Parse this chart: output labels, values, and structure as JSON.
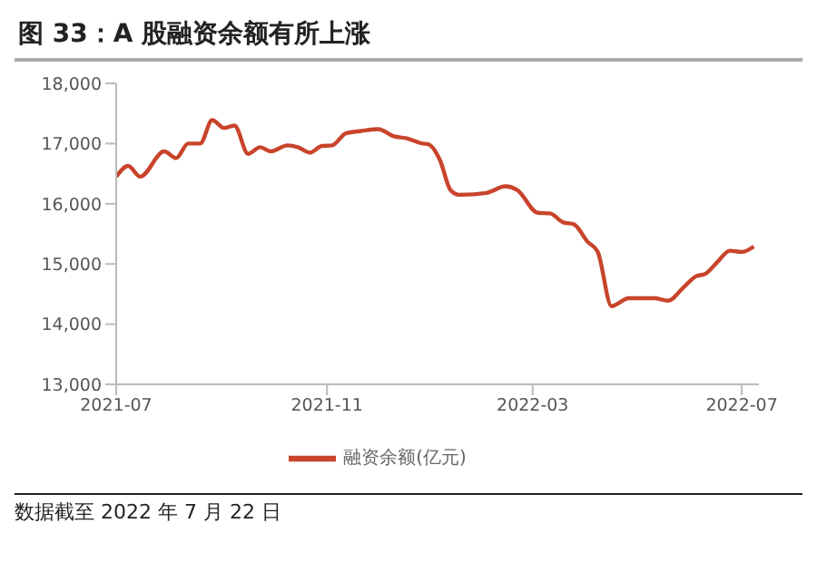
{
  "chart_data": {
    "type": "line",
    "title": "图 33：A 股融资余额有所上涨",
    "x": [
      "2021-07-01",
      "2021-07-08",
      "2021-07-15",
      "2021-07-29",
      "2021-08-05",
      "2021-08-12",
      "2021-08-19",
      "2021-08-26",
      "2021-09-02",
      "2021-09-08",
      "2021-09-16",
      "2021-09-23",
      "2021-09-29",
      "2021-10-09",
      "2021-10-15",
      "2021-10-22",
      "2021-10-29",
      "2021-11-04",
      "2021-11-12",
      "2021-11-21",
      "2021-12-01",
      "2021-12-10",
      "2021-12-17",
      "2021-12-27",
      "2021-12-30",
      "2022-01-06",
      "2022-01-12",
      "2022-01-17",
      "2022-02-02",
      "2022-02-13",
      "2022-02-20",
      "2022-03-04",
      "2022-03-11",
      "2022-03-19",
      "2022-03-25",
      "2022-04-02",
      "2022-04-08",
      "2022-04-16",
      "2022-04-26",
      "2022-05-11",
      "2022-05-19",
      "2022-05-28",
      "2022-06-04",
      "2022-06-10",
      "2022-06-17",
      "2022-06-24",
      "2022-07-01",
      "2022-07-08"
    ],
    "series": [
      {
        "name": "融资余额(亿元)",
        "color": "#c8442a",
        "values": [
          16450,
          16630,
          16450,
          16870,
          16760,
          17000,
          17000,
          17390,
          17260,
          17300,
          16830,
          16940,
          16870,
          16970,
          16940,
          16850,
          16960,
          16970,
          17170,
          17210,
          17240,
          17120,
          17090,
          17000,
          16990,
          16720,
          16230,
          16150,
          16180,
          16290,
          16230,
          15850,
          15840,
          15690,
          15660,
          15370,
          15200,
          14300,
          14430,
          14430,
          14390,
          14610,
          14790,
          14840,
          15040,
          15220,
          15200,
          15290
        ]
      }
    ],
    "xlim": [
      "2021-07-01",
      "2022-07-11"
    ],
    "xticks": [
      {
        "value": "2021-07-01",
        "label": "2021-07"
      },
      {
        "value": "2021-11-01",
        "label": "2021-11"
      },
      {
        "value": "2022-03-01",
        "label": "2022-03"
      },
      {
        "value": "2022-07-01",
        "label": "2022-07"
      }
    ],
    "ylim": [
      13000,
      18000
    ],
    "yticks": [
      {
        "value": 13000,
        "label": "13,000"
      },
      {
        "value": 14000,
        "label": "14,000"
      },
      {
        "value": 15000,
        "label": "15,000"
      },
      {
        "value": 16000,
        "label": "16,000"
      },
      {
        "value": 17000,
        "label": "17,000"
      },
      {
        "value": 18000,
        "label": "18,000"
      }
    ],
    "grid": false,
    "legend": "bottom",
    "marker": "none",
    "line_style": "solid",
    "annotations": [
      "数据截至 2022 年 7 月 22 日"
    ]
  }
}
